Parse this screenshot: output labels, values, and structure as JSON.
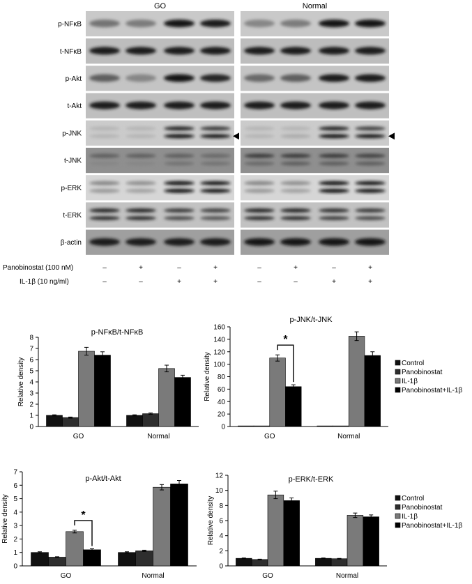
{
  "blot": {
    "groups": [
      "GO",
      "Normal"
    ],
    "rows": [
      "p-NFκB",
      "t-NFκB",
      "p-Akt",
      "t-Akt",
      "p-JNK",
      "t-JNK",
      "p-ERK",
      "t-ERK",
      "β-actin"
    ],
    "treatments": [
      {
        "label": "Panobinostat (100 nM)",
        "signs": [
          "–",
          "+",
          "–",
          "+",
          "–",
          "+",
          "–",
          "+"
        ]
      },
      {
        "label": "IL-1β (10 ng/ml)",
        "signs": [
          "–",
          "–",
          "+",
          "+",
          "–",
          "–",
          "+",
          "+"
        ]
      }
    ]
  },
  "legend": [
    "Control",
    "Panobinostat",
    "IL-1β",
    "Panobinostat+IL-1β"
  ],
  "series_colors": [
    "#111111",
    "#2e2e2e",
    "#7a7a7a",
    "#000000"
  ],
  "chart_data": [
    {
      "type": "bar",
      "title": "p-NFκB/t-NFκB",
      "ylabel": "Relative density",
      "categories": [
        "GO",
        "Normal"
      ],
      "ylim": [
        0,
        8
      ],
      "yticks": [
        0,
        1,
        2,
        3,
        4,
        5,
        6,
        7,
        8
      ],
      "series": [
        {
          "name": "Control",
          "values": [
            1.0,
            1.0
          ],
          "errors": [
            0.05,
            0.05
          ]
        },
        {
          "name": "Panobinostat",
          "values": [
            0.8,
            1.15
          ],
          "errors": [
            0.05,
            0.06
          ]
        },
        {
          "name": "IL-1β",
          "values": [
            6.75,
            5.2
          ],
          "errors": [
            0.35,
            0.3
          ]
        },
        {
          "name": "Panobinostat+IL-1β",
          "values": [
            6.4,
            4.4
          ],
          "errors": [
            0.3,
            0.2
          ]
        }
      ],
      "significance": []
    },
    {
      "type": "bar",
      "title": "p-JNK/t-JNK",
      "ylabel": "Relative density",
      "categories": [
        "GO",
        "Normal"
      ],
      "ylim": [
        0,
        160
      ],
      "yticks": [
        0,
        20,
        40,
        60,
        80,
        100,
        120,
        140,
        160
      ],
      "series": [
        {
          "name": "Control",
          "values": [
            1,
            1
          ],
          "errors": [
            0,
            0
          ]
        },
        {
          "name": "Panobinostat",
          "values": [
            1,
            1
          ],
          "errors": [
            0,
            0
          ]
        },
        {
          "name": "IL-1β",
          "values": [
            110,
            145
          ],
          "errors": [
            5,
            7
          ]
        },
        {
          "name": "Panobinostat+IL-1β",
          "values": [
            64,
            114
          ],
          "errors": [
            3,
            6
          ]
        }
      ],
      "significance": [
        {
          "group": 0,
          "from": 2,
          "to": 3,
          "label": "*"
        }
      ]
    },
    {
      "type": "bar",
      "title": "p-Akt/t-Akt",
      "ylabel": "Relative density",
      "categories": [
        "GO",
        "Normal"
      ],
      "ylim": [
        0,
        7
      ],
      "yticks": [
        0,
        1,
        2,
        3,
        4,
        5,
        6,
        7
      ],
      "series": [
        {
          "name": "Control",
          "values": [
            1.0,
            1.0
          ],
          "errors": [
            0.05,
            0.05
          ]
        },
        {
          "name": "Panobinostat",
          "values": [
            0.65,
            1.12
          ],
          "errors": [
            0.03,
            0.05
          ]
        },
        {
          "name": "IL-1β",
          "values": [
            2.55,
            5.85
          ],
          "errors": [
            0.1,
            0.2
          ]
        },
        {
          "name": "Panobinostat+IL-1β",
          "values": [
            1.2,
            6.1
          ],
          "errors": [
            0.07,
            0.25
          ]
        }
      ],
      "significance": [
        {
          "group": 0,
          "from": 2,
          "to": 3,
          "label": "*"
        }
      ]
    },
    {
      "type": "bar",
      "title": "p-ERK/t-ERK",
      "ylabel": "Relative density",
      "categories": [
        "GO",
        "Normal"
      ],
      "ylim": [
        0,
        12
      ],
      "yticks": [
        0,
        2,
        4,
        6,
        8,
        10,
        12
      ],
      "series": [
        {
          "name": "Control",
          "values": [
            1.0,
            1.0
          ],
          "errors": [
            0.05,
            0.05
          ]
        },
        {
          "name": "Panobinostat",
          "values": [
            0.85,
            0.95
          ],
          "errors": [
            0.04,
            0.04
          ]
        },
        {
          "name": "IL-1β",
          "values": [
            9.4,
            6.7
          ],
          "errors": [
            0.5,
            0.3
          ]
        },
        {
          "name": "Panobinostat+IL-1β",
          "values": [
            8.65,
            6.5
          ],
          "errors": [
            0.35,
            0.25
          ]
        }
      ],
      "significance": []
    }
  ]
}
